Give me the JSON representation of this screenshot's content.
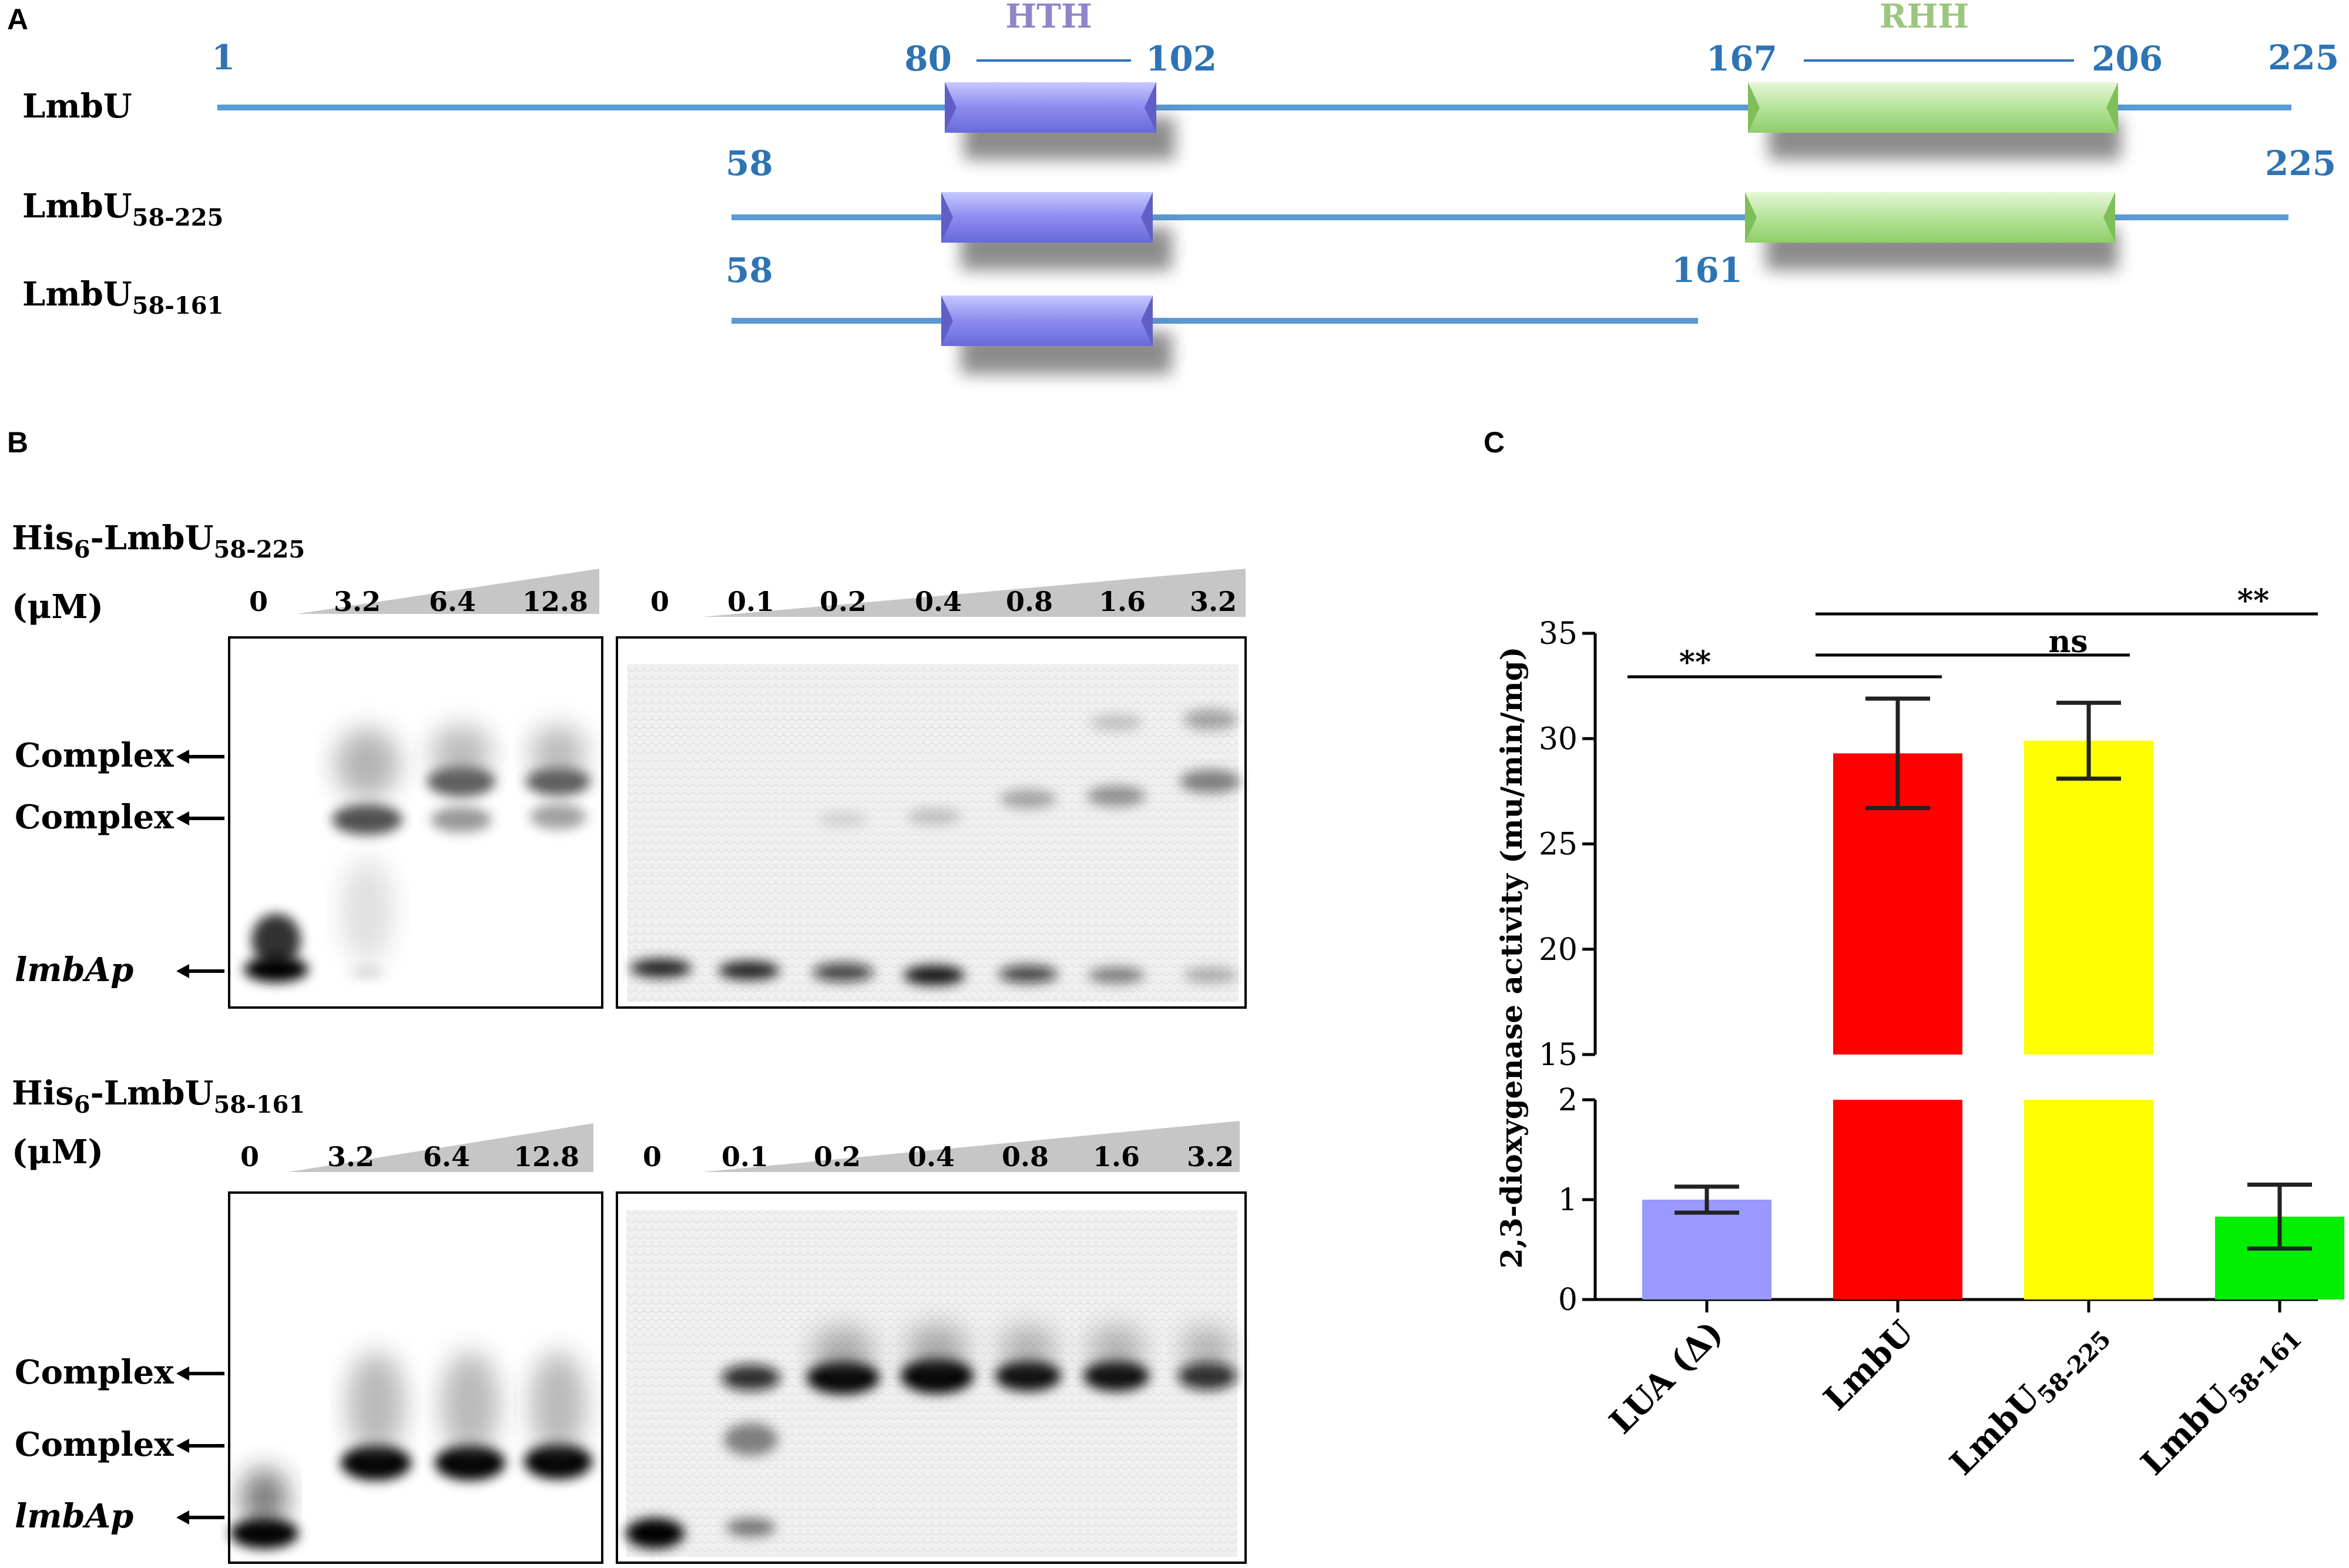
{
  "panel_a": {
    "letter": "A",
    "domain_hth": "HTH",
    "domain_rhh": "RHH",
    "row1": {
      "name": "LmbU",
      "sub": "",
      "start": "1",
      "end": "225",
      "hth_start": "80",
      "hth_end": "102",
      "rhh_start": "167",
      "rhh_end": "206"
    },
    "row2": {
      "name": "LmbU",
      "sub": "58-225",
      "start": "58",
      "end": "225"
    },
    "row3": {
      "name": "LmbU",
      "sub": "58-161",
      "start": "58",
      "end": "161"
    },
    "colors": {
      "line": "#5b9bd5",
      "hth": "#8c8cf0",
      "rhh": "#b6e39a",
      "hth_label": "#8f86c9",
      "rhh_label": "#9cc67f",
      "number": "#2e74b5"
    }
  },
  "panel_b": {
    "letter": "B",
    "top": {
      "protein_prefix": "His",
      "protein_sub1": "6",
      "protein_mid": "-LmbU",
      "protein_sub2": "58-225",
      "unit": "(μM)",
      "left_gel_concs": [
        "0",
        "3.2",
        "6.4",
        "12.8"
      ],
      "right_gel_concs": [
        "0",
        "0.1",
        "0.2",
        "0.4",
        "0.8",
        "1.6",
        "3.2"
      ],
      "labels": [
        "Complex",
        "Complex",
        "lmbAp"
      ]
    },
    "bottom": {
      "protein_prefix": "His",
      "protein_sub1": "6",
      "protein_mid": "-LmbU",
      "protein_sub2": "58-161",
      "unit": "(μM)",
      "left_gel_concs": [
        "0",
        "3.2",
        "6.4",
        "12.8"
      ],
      "right_gel_concs": [
        "0",
        "0.1",
        "0.2",
        "0.4",
        "0.8",
        "1.6",
        "3.2"
      ],
      "labels": [
        "Complex",
        "Complex",
        "lmbAp"
      ]
    }
  },
  "panel_c": {
    "letter": "C",
    "ylabel": "2,3-dioxygenase activity (mu/min/mg)",
    "sig_labels": [
      "**",
      "ns",
      "**"
    ],
    "chart_data": {
      "type": "bar",
      "categories": [
        "LUA (Δ)",
        "LmbU",
        "LmbU58-225",
        "LmbU58-161"
      ],
      "category_labels": [
        {
          "main": "LUA (Δ)",
          "sub": ""
        },
        {
          "main": "LmbU",
          "sub": ""
        },
        {
          "main": "LmbU",
          "sub": "58-225"
        },
        {
          "main": "LmbU",
          "sub": "58-161"
        }
      ],
      "values": [
        1.0,
        29.3,
        29.9,
        0.83
      ],
      "errors": [
        0.13,
        2.6,
        1.8,
        0.32
      ],
      "colors": [
        "#9999ff",
        "#ff0000",
        "#ffff00",
        "#00ee00"
      ],
      "ylabel": "2,3-dioxygenase activity (mu/min/mg)",
      "axis_break": {
        "lower_ylim": [
          0,
          2
        ],
        "upper_ylim": [
          15,
          35
        ]
      },
      "lower_ticks": [
        "0",
        "1",
        "2"
      ],
      "upper_ticks": [
        "15",
        "20",
        "25",
        "30",
        "35"
      ],
      "significance": [
        {
          "between": [
            "LUA (Δ)",
            "LmbU"
          ],
          "label": "**"
        },
        {
          "between": [
            "LmbU",
            "LmbU58-225"
          ],
          "label": "ns"
        },
        {
          "between": [
            "LmbU",
            "LmbU58-161"
          ],
          "label": "**"
        }
      ]
    }
  }
}
